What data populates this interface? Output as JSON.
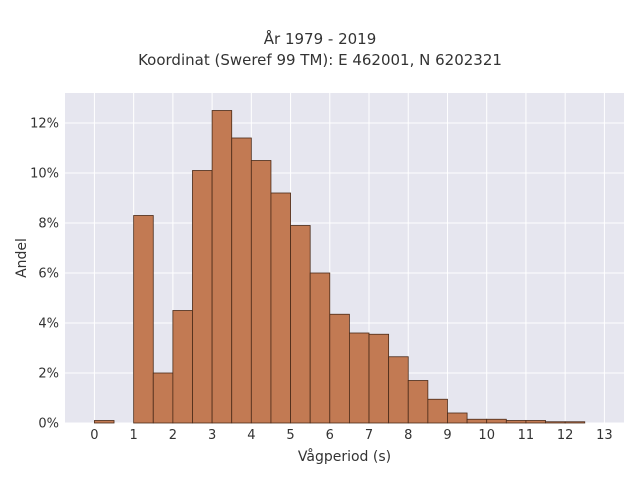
{
  "chart_data": {
    "type": "bar",
    "title_line1": "År 1979 - 2019",
    "title_line2": "Koordinat (Sweref 99 TM): E 462001, N 6202321",
    "xlabel": "Vågperiod (s)",
    "ylabel": "Andel",
    "x_ticks": [
      0,
      1,
      2,
      3,
      4,
      5,
      6,
      7,
      8,
      9,
      10,
      11,
      12,
      13
    ],
    "y_ticks": [
      "0%",
      "2%",
      "4%",
      "6%",
      "8%",
      "10%",
      "12%"
    ],
    "xlim": [
      -0.75,
      13.5
    ],
    "ylim": [
      0,
      13.2
    ],
    "bin_width": 0.5,
    "bins": [
      {
        "start": 0.0,
        "value": 0.1
      },
      {
        "start": 1.0,
        "value": 8.3
      },
      {
        "start": 1.5,
        "value": 2.0
      },
      {
        "start": 2.0,
        "value": 4.5
      },
      {
        "start": 2.5,
        "value": 10.1
      },
      {
        "start": 3.0,
        "value": 12.5
      },
      {
        "start": 3.5,
        "value": 11.4
      },
      {
        "start": 4.0,
        "value": 10.5
      },
      {
        "start": 4.5,
        "value": 9.2
      },
      {
        "start": 5.0,
        "value": 7.9
      },
      {
        "start": 5.5,
        "value": 6.0
      },
      {
        "start": 6.0,
        "value": 4.35
      },
      {
        "start": 6.5,
        "value": 3.6
      },
      {
        "start": 7.0,
        "value": 3.55
      },
      {
        "start": 7.5,
        "value": 2.65
      },
      {
        "start": 8.0,
        "value": 1.7
      },
      {
        "start": 8.5,
        "value": 0.95
      },
      {
        "start": 9.0,
        "value": 0.4
      },
      {
        "start": 9.5,
        "value": 0.15
      },
      {
        "start": 10.0,
        "value": 0.15
      },
      {
        "start": 10.5,
        "value": 0.1
      },
      {
        "start": 11.0,
        "value": 0.1
      },
      {
        "start": 11.5,
        "value": 0.05
      },
      {
        "start": 12.0,
        "value": 0.05
      }
    ],
    "grid": true,
    "colors": {
      "bar_fill": "#c27a53",
      "bar_edge": "#4a2a18",
      "plot_bg": "#e6e6ef",
      "grid": "#ffffff",
      "text": "#333333"
    }
  }
}
